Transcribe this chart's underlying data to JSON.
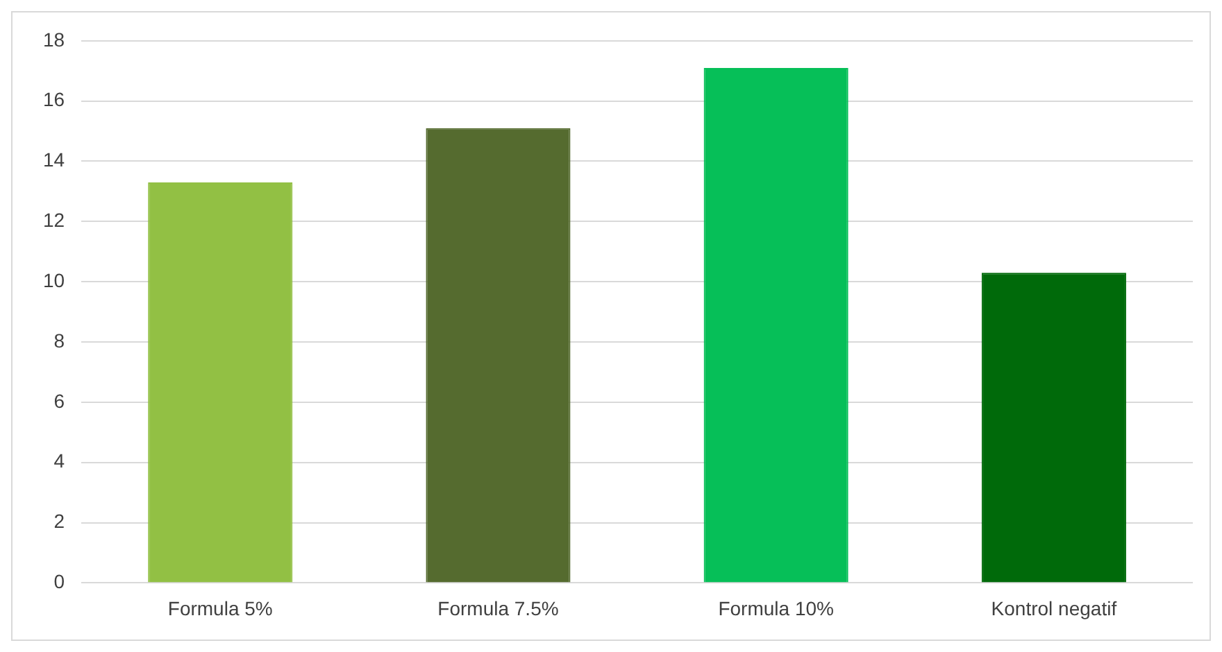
{
  "chart_data": {
    "type": "bar",
    "categories": [
      "Formula 5%",
      "Formula 7.5%",
      "Formula 10%",
      "Kontrol negatif"
    ],
    "values": [
      13.3,
      15.1,
      17.1,
      10.3
    ],
    "colors": [
      "#92c044",
      "#556b2f",
      "#06bf58",
      "#006a0a"
    ],
    "ylim": [
      0,
      18
    ],
    "yticks": [
      0,
      2,
      4,
      6,
      8,
      10,
      12,
      14,
      16,
      18
    ],
    "grid": "y",
    "legend": false
  }
}
